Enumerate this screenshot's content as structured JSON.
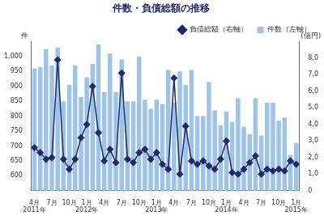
{
  "chart_data": {
    "type": "bar",
    "title": "件数・負債総額の推移",
    "ylabel": "件",
    "y2label": "(億円)",
    "categories": [
      [
        "4月",
        "2011年"
      ],
      null,
      null,
      "7月",
      null,
      null,
      "10月",
      null,
      null,
      [
        "1月",
        "2012年"
      ],
      null,
      null,
      "4月",
      null,
      null,
      "7月",
      null,
      null,
      "10月",
      null,
      null,
      [
        "1月",
        "2013年"
      ],
      null,
      null,
      "4月",
      null,
      null,
      "7月",
      null,
      null,
      "10月",
      null,
      null,
      [
        "1月",
        "2014年"
      ],
      null,
      null,
      "4月",
      null,
      null,
      "7月",
      null,
      null,
      "10月",
      null,
      null,
      [
        "1月",
        "2015年"
      ]
    ],
    "series": [
      {
        "name": "件数（左軸）",
        "type": "bar",
        "color": "#9dc3e6",
        "axis": "y",
        "values": [
          960,
          965,
          1025,
          970,
          1030,
          850,
          905,
          970,
          865,
          930,
          975,
          1040,
          880,
          1010,
          880,
          990,
          850,
          850,
          1000,
          855,
          825,
          855,
          840,
          955,
          845,
          950,
          905,
          955,
          800,
          800,
          915,
          820,
          770,
          815,
          780,
          860,
          765,
          740,
          860,
          735,
          845,
          845,
          785,
          795,
          670,
          710
        ]
      },
      {
        "name": "負債総額（右軸）",
        "type": "line",
        "color": "#1f2a6b",
        "marker": "diamond",
        "axis": "y2",
        "values": [
          2.6,
          2.3,
          1.9,
          2.0,
          7.9,
          1.9,
          1.3,
          1.9,
          3.2,
          4.0,
          6.3,
          3.5,
          1.8,
          2.5,
          1.7,
          7.1,
          1.9,
          1.7,
          2.3,
          2.5,
          1.9,
          2.3,
          1.6,
          1.3,
          6.8,
          1.0,
          3.9,
          1.8,
          1.6,
          1.8,
          1.5,
          1.3,
          1.9,
          3.0,
          1.1,
          1.0,
          1.3,
          1.7,
          2.1,
          1.0,
          1.3,
          1.2,
          1.3,
          1.2,
          1.8,
          1.6
        ]
      }
    ],
    "ylim": [
      550,
      1050
    ],
    "yticks": [
      600,
      650,
      700,
      750,
      800,
      850,
      900,
      950,
      {
        "value": 1000,
        "label": "1,000"
      }
    ],
    "y2lim": [
      0,
      9
    ],
    "y2ticks": [
      0,
      {
        "value": 1,
        "label": "1,0"
      },
      {
        "value": 2,
        "label": "2,0"
      },
      {
        "value": 3,
        "label": "3,0"
      },
      {
        "value": 4,
        "label": "4,0"
      },
      {
        "value": 5,
        "label": "5,0"
      },
      {
        "value": 6,
        "label": "6,0"
      },
      {
        "value": 7,
        "label": "7,0"
      },
      {
        "value": 8,
        "label": "8,0"
      }
    ],
    "grid": false,
    "legend": "upper right"
  }
}
